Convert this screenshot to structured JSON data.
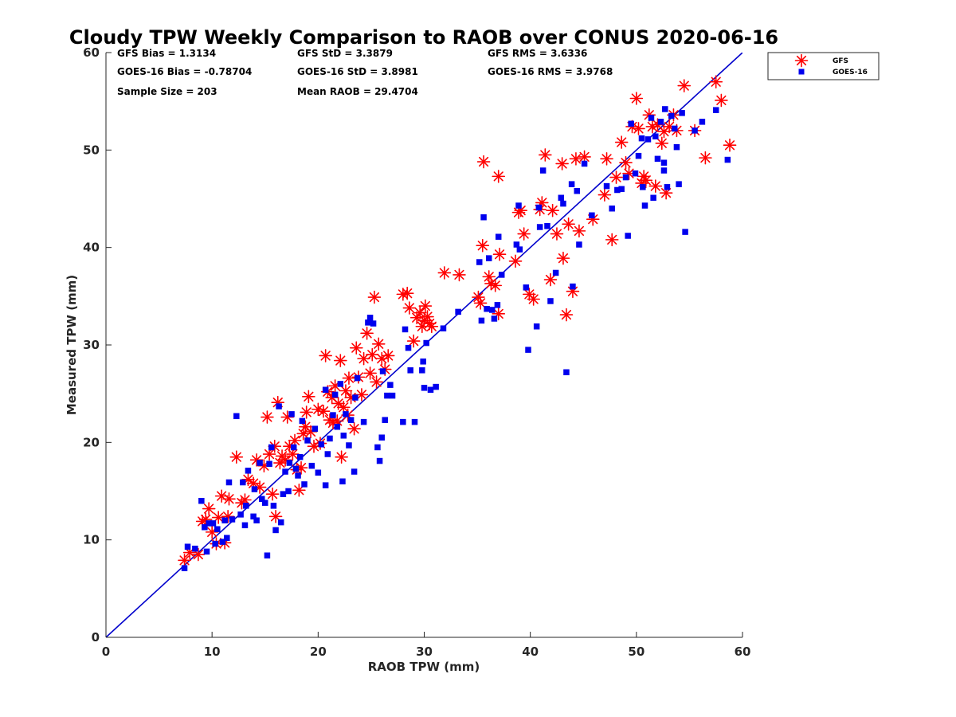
{
  "chart_data": {
    "type": "scatter",
    "title": "Cloudy TPW Weekly Comparison to RAOB over CONUS 2020-06-16",
    "xlabel": "RAOB TPW (mm)",
    "ylabel": "Measured TPW (mm)",
    "xlim": [
      0,
      60
    ],
    "ylim": [
      0,
      60
    ],
    "xticks": [
      "0",
      "10",
      "20",
      "30",
      "40",
      "50",
      "60"
    ],
    "yticks": [
      "0",
      "10",
      "20",
      "30",
      "40",
      "50",
      "60"
    ],
    "grid": false,
    "legend_position": "outside-top-right",
    "stats": [
      "GFS Bias = 1.3134",
      "GFS StD = 3.3879",
      "GFS RMS = 3.6336",
      "GOES-16 Bias = -0.78704",
      "GOES-16 StD = 3.8981",
      "GOES-16 RMS = 3.9768",
      "Sample Size = 203",
      "Mean RAOB = 29.4704"
    ],
    "reference_line": {
      "x": [
        0,
        60
      ],
      "y": [
        0,
        60
      ],
      "color": "#0000cc"
    },
    "series": [
      {
        "name": "GFS",
        "marker": "asterisk",
        "color": "#ff0000",
        "points": [
          [
            7.4,
            7.9
          ],
          [
            7.9,
            8.7
          ],
          [
            8.7,
            8.5
          ],
          [
            9.1,
            11.9
          ],
          [
            9.4,
            12.1
          ],
          [
            9.7,
            13.2
          ],
          [
            10.0,
            10.8
          ],
          [
            10.4,
            9.6
          ],
          [
            10.6,
            12.3
          ],
          [
            10.9,
            14.5
          ],
          [
            11.2,
            9.7
          ],
          [
            11.5,
            12.4
          ],
          [
            11.6,
            14.2
          ],
          [
            12.3,
            18.5
          ],
          [
            12.8,
            13.8
          ],
          [
            13.1,
            14.1
          ],
          [
            13.4,
            16.2
          ],
          [
            13.9,
            15.8
          ],
          [
            14.2,
            18.2
          ],
          [
            14.5,
            15.4
          ],
          [
            14.9,
            17.6
          ],
          [
            15.2,
            22.6
          ],
          [
            15.4,
            18.8
          ],
          [
            15.7,
            14.7
          ],
          [
            15.9,
            19.6
          ],
          [
            16.0,
            12.4
          ],
          [
            16.2,
            24.1
          ],
          [
            16.4,
            17.9
          ],
          [
            16.6,
            18.6
          ],
          [
            16.9,
            18.2
          ],
          [
            17.1,
            22.6
          ],
          [
            17.3,
            19.6
          ],
          [
            17.6,
            18.8
          ],
          [
            17.8,
            20.2
          ],
          [
            18.0,
            17.2
          ],
          [
            18.2,
            15.1
          ],
          [
            18.4,
            17.4
          ],
          [
            18.6,
            20.9
          ],
          [
            18.8,
            21.6
          ],
          [
            18.9,
            23.1
          ],
          [
            19.1,
            24.7
          ],
          [
            19.3,
            21.1
          ],
          [
            19.6,
            19.6
          ],
          [
            20.0,
            23.4
          ],
          [
            20.2,
            19.9
          ],
          [
            20.5,
            23.2
          ],
          [
            20.7,
            28.9
          ],
          [
            20.9,
            25.2
          ],
          [
            21.1,
            22.3
          ],
          [
            21.3,
            24.6
          ],
          [
            21.4,
            22.0
          ],
          [
            21.6,
            25.8
          ],
          [
            21.8,
            22.2
          ],
          [
            21.9,
            24.0
          ],
          [
            22.1,
            28.4
          ],
          [
            22.2,
            18.5
          ],
          [
            22.4,
            23.6
          ],
          [
            22.6,
            25.3
          ],
          [
            22.8,
            22.8
          ],
          [
            22.9,
            26.6
          ],
          [
            23.1,
            24.6
          ],
          [
            23.4,
            21.4
          ],
          [
            23.6,
            29.7
          ],
          [
            23.8,
            26.7
          ],
          [
            24.1,
            24.9
          ],
          [
            24.3,
            28.6
          ],
          [
            24.6,
            31.2
          ],
          [
            24.9,
            27.1
          ],
          [
            25.1,
            29.0
          ],
          [
            25.3,
            34.9
          ],
          [
            25.5,
            26.2
          ],
          [
            25.7,
            30.1
          ],
          [
            26.0,
            28.6
          ],
          [
            26.3,
            27.5
          ],
          [
            26.6,
            28.9
          ],
          [
            28.0,
            35.2
          ],
          [
            28.4,
            35.3
          ],
          [
            28.6,
            33.8
          ],
          [
            29.0,
            30.4
          ],
          [
            29.3,
            32.8
          ],
          [
            29.6,
            33.3
          ],
          [
            29.8,
            31.9
          ],
          [
            30.0,
            32.5
          ],
          [
            30.1,
            34.0
          ],
          [
            30.3,
            32.9
          ],
          [
            30.5,
            32.2
          ],
          [
            30.7,
            31.9
          ],
          [
            31.9,
            37.4
          ],
          [
            33.3,
            37.2
          ],
          [
            35.1,
            34.9
          ],
          [
            35.3,
            34.3
          ],
          [
            35.5,
            40.2
          ],
          [
            35.6,
            48.8
          ],
          [
            36.1,
            37.0
          ],
          [
            36.3,
            36.3
          ],
          [
            36.7,
            36.1
          ],
          [
            37.0,
            33.2
          ],
          [
            37.0,
            47.3
          ],
          [
            37.1,
            39.3
          ],
          [
            38.6,
            38.6
          ],
          [
            38.9,
            43.6
          ],
          [
            39.1,
            43.8
          ],
          [
            39.4,
            41.4
          ],
          [
            39.9,
            35.2
          ],
          [
            40.3,
            34.7
          ],
          [
            40.9,
            43.9
          ],
          [
            41.1,
            44.6
          ],
          [
            41.4,
            49.5
          ],
          [
            41.9,
            36.7
          ],
          [
            42.1,
            43.8
          ],
          [
            42.5,
            41.4
          ],
          [
            43.0,
            48.6
          ],
          [
            43.1,
            38.9
          ],
          [
            43.4,
            33.1
          ],
          [
            43.6,
            42.4
          ],
          [
            44.0,
            35.5
          ],
          [
            44.3,
            49.1
          ],
          [
            44.6,
            41.7
          ],
          [
            45.1,
            49.3
          ],
          [
            45.9,
            42.9
          ],
          [
            47.0,
            45.4
          ],
          [
            47.2,
            49.1
          ],
          [
            47.7,
            40.8
          ],
          [
            48.1,
            47.2
          ],
          [
            48.6,
            50.8
          ],
          [
            49.0,
            48.7
          ],
          [
            49.3,
            47.6
          ],
          [
            49.6,
            52.4
          ],
          [
            50.0,
            55.3
          ],
          [
            50.2,
            52.2
          ],
          [
            50.5,
            46.6
          ],
          [
            50.7,
            47.3
          ],
          [
            50.9,
            46.9
          ],
          [
            51.2,
            53.6
          ],
          [
            51.5,
            52.4
          ],
          [
            51.8,
            46.3
          ],
          [
            52.0,
            52.6
          ],
          [
            52.4,
            50.7
          ],
          [
            52.6,
            51.9
          ],
          [
            52.8,
            45.6
          ],
          [
            53.1,
            52.4
          ],
          [
            53.5,
            53.6
          ],
          [
            53.8,
            52.0
          ],
          [
            54.5,
            56.6
          ],
          [
            55.5,
            52.0
          ],
          [
            56.5,
            49.2
          ],
          [
            57.5,
            57.0
          ],
          [
            58.0,
            55.1
          ],
          [
            58.8,
            50.5
          ]
        ]
      },
      {
        "name": "GOES-16",
        "marker": "square",
        "color": "#0000ee",
        "points": [
          [
            7.4,
            7.1
          ],
          [
            7.7,
            9.3
          ],
          [
            8.4,
            9.1
          ],
          [
            9.0,
            14.0
          ],
          [
            9.3,
            11.3
          ],
          [
            9.5,
            8.8
          ],
          [
            9.7,
            11.7
          ],
          [
            10.1,
            11.7
          ],
          [
            10.3,
            9.6
          ],
          [
            10.5,
            11.1
          ],
          [
            11.0,
            9.8
          ],
          [
            11.2,
            12.0
          ],
          [
            11.4,
            10.2
          ],
          [
            11.6,
            15.9
          ],
          [
            11.9,
            12.1
          ],
          [
            12.3,
            22.7
          ],
          [
            12.7,
            12.6
          ],
          [
            12.9,
            15.9
          ],
          [
            13.1,
            11.5
          ],
          [
            13.2,
            13.5
          ],
          [
            13.4,
            17.1
          ],
          [
            13.9,
            12.4
          ],
          [
            14.0,
            15.2
          ],
          [
            14.2,
            12.0
          ],
          [
            14.5,
            17.9
          ],
          [
            14.7,
            14.2
          ],
          [
            15.0,
            13.8
          ],
          [
            15.2,
            8.4
          ],
          [
            15.4,
            17.8
          ],
          [
            15.6,
            19.5
          ],
          [
            15.8,
            13.5
          ],
          [
            16.0,
            11.0
          ],
          [
            16.3,
            23.7
          ],
          [
            16.5,
            11.8
          ],
          [
            16.7,
            14.7
          ],
          [
            16.9,
            17.0
          ],
          [
            17.2,
            15.0
          ],
          [
            17.3,
            17.9
          ],
          [
            17.5,
            22.9
          ],
          [
            17.7,
            19.5
          ],
          [
            17.9,
            17.3
          ],
          [
            18.1,
            16.6
          ],
          [
            18.3,
            18.5
          ],
          [
            18.5,
            22.2
          ],
          [
            18.7,
            15.7
          ],
          [
            19.0,
            20.2
          ],
          [
            19.4,
            17.6
          ],
          [
            19.7,
            21.4
          ],
          [
            20.0,
            16.9
          ],
          [
            20.3,
            19.8
          ],
          [
            20.7,
            15.6
          ],
          [
            20.7,
            25.4
          ],
          [
            20.9,
            18.8
          ],
          [
            21.1,
            20.4
          ],
          [
            21.4,
            22.8
          ],
          [
            21.6,
            24.9
          ],
          [
            21.8,
            21.6
          ],
          [
            22.1,
            26.0
          ],
          [
            22.3,
            16.0
          ],
          [
            22.4,
            20.7
          ],
          [
            22.6,
            22.9
          ],
          [
            22.9,
            19.7
          ],
          [
            23.1,
            22.3
          ],
          [
            23.4,
            17.0
          ],
          [
            23.5,
            24.6
          ],
          [
            23.7,
            26.6
          ],
          [
            24.3,
            22.1
          ],
          [
            24.7,
            32.3
          ],
          [
            24.9,
            32.8
          ],
          [
            25.2,
            32.2
          ],
          [
            25.6,
            19.5
          ],
          [
            25.8,
            18.1
          ],
          [
            26.0,
            20.5
          ],
          [
            26.1,
            27.3
          ],
          [
            26.3,
            22.3
          ],
          [
            26.5,
            24.8
          ],
          [
            26.8,
            25.9
          ],
          [
            27.0,
            24.8
          ],
          [
            28.0,
            22.1
          ],
          [
            28.2,
            31.6
          ],
          [
            28.5,
            29.7
          ],
          [
            28.7,
            27.4
          ],
          [
            29.1,
            22.1
          ],
          [
            29.8,
            27.4
          ],
          [
            29.9,
            28.3
          ],
          [
            30.0,
            25.6
          ],
          [
            30.2,
            30.2
          ],
          [
            30.6,
            25.4
          ],
          [
            31.1,
            25.7
          ],
          [
            31.8,
            31.7
          ],
          [
            33.2,
            33.4
          ],
          [
            35.2,
            38.5
          ],
          [
            35.4,
            32.5
          ],
          [
            35.6,
            43.1
          ],
          [
            35.9,
            33.7
          ],
          [
            36.1,
            38.9
          ],
          [
            36.4,
            33.6
          ],
          [
            36.6,
            32.7
          ],
          [
            36.9,
            34.1
          ],
          [
            37.0,
            41.1
          ],
          [
            37.3,
            37.2
          ],
          [
            38.7,
            40.3
          ],
          [
            38.9,
            44.3
          ],
          [
            39.0,
            39.8
          ],
          [
            39.6,
            35.9
          ],
          [
            39.8,
            29.5
          ],
          [
            40.6,
            31.9
          ],
          [
            40.8,
            44.1
          ],
          [
            40.9,
            42.1
          ],
          [
            41.2,
            47.9
          ],
          [
            41.6,
            42.2
          ],
          [
            41.9,
            34.5
          ],
          [
            42.4,
            37.4
          ],
          [
            42.9,
            45.1
          ],
          [
            43.1,
            44.5
          ],
          [
            43.4,
            27.2
          ],
          [
            43.9,
            46.5
          ],
          [
            44.0,
            36.0
          ],
          [
            44.4,
            45.8
          ],
          [
            44.6,
            40.3
          ],
          [
            45.1,
            48.6
          ],
          [
            45.8,
            43.3
          ],
          [
            47.2,
            46.3
          ],
          [
            47.7,
            44.0
          ],
          [
            48.2,
            45.9
          ],
          [
            48.6,
            46.0
          ],
          [
            49.0,
            47.2
          ],
          [
            49.2,
            41.2
          ],
          [
            49.5,
            52.7
          ],
          [
            49.9,
            47.6
          ],
          [
            50.2,
            49.4
          ],
          [
            50.5,
            51.2
          ],
          [
            50.6,
            46.2
          ],
          [
            50.8,
            44.3
          ],
          [
            51.1,
            51.1
          ],
          [
            51.4,
            53.3
          ],
          [
            51.6,
            45.1
          ],
          [
            51.8,
            51.4
          ],
          [
            52.0,
            49.1
          ],
          [
            52.3,
            52.9
          ],
          [
            52.6,
            48.7
          ],
          [
            52.6,
            47.9
          ],
          [
            52.7,
            54.2
          ],
          [
            52.9,
            46.2
          ],
          [
            53.3,
            53.5
          ],
          [
            53.6,
            52.2
          ],
          [
            53.8,
            50.3
          ],
          [
            54.0,
            46.5
          ],
          [
            54.3,
            53.8
          ],
          [
            54.6,
            41.6
          ],
          [
            55.5,
            52.0
          ],
          [
            56.2,
            52.9
          ],
          [
            57.5,
            54.1
          ],
          [
            58.6,
            49.0
          ]
        ]
      }
    ]
  }
}
